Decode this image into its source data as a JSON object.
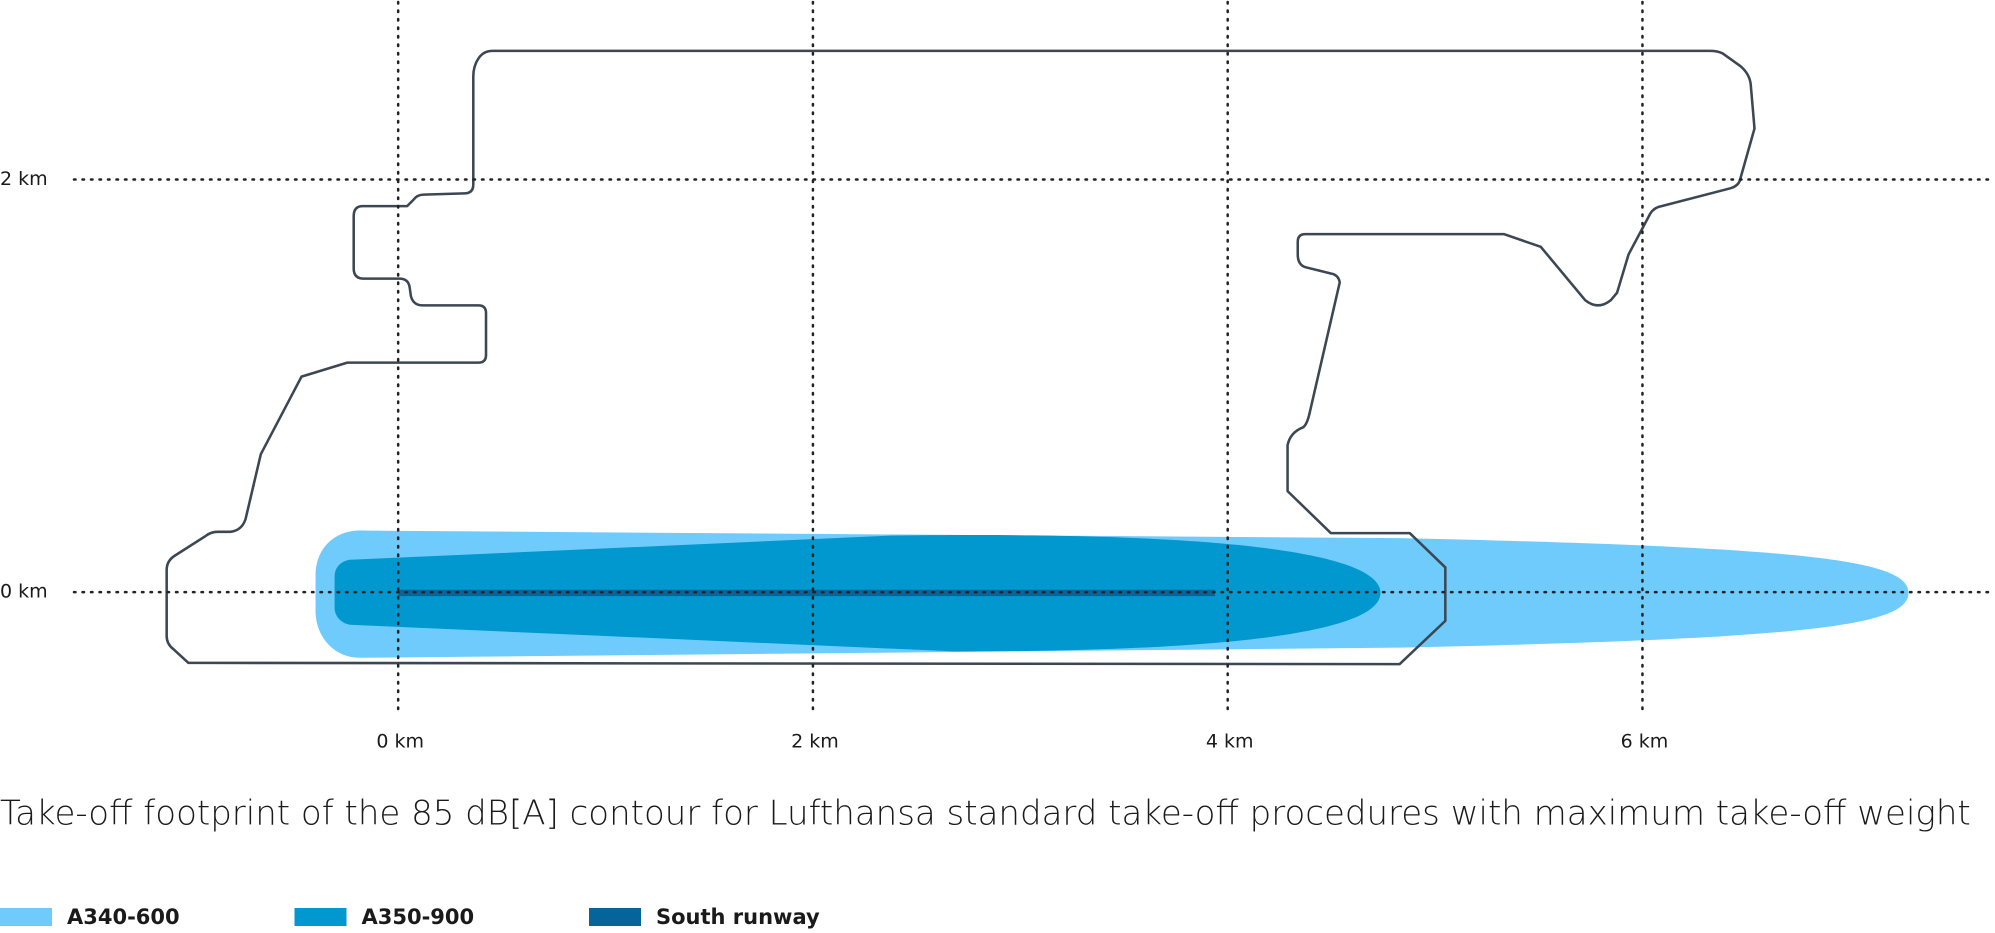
{
  "chart_data": {
    "type": "area",
    "title": "Take-off footprint of the 85 dB[A] contour for Lufthansa standard take-off procedures with maximum take-off weight",
    "xlim": [
      -1.92,
      7.7
    ],
    "ylim": [
      -0.62,
      2.87
    ],
    "xticks": [
      {
        "value": 0,
        "label": "0 km"
      },
      {
        "value": 2,
        "label": "2 km"
      },
      {
        "value": 4,
        "label": "4 km"
      },
      {
        "value": 6,
        "label": "6 km"
      }
    ],
    "yticks": [
      {
        "value": 0,
        "label": "0 km"
      },
      {
        "value": 2,
        "label": "2 km"
      }
    ],
    "grid": true,
    "series": [
      {
        "name": "A340-600",
        "color": "#6fcbfb"
      },
      {
        "name": "A350-900",
        "color": "#0098cf"
      },
      {
        "name": "South runway",
        "color": "#05659a"
      }
    ]
  }
}
